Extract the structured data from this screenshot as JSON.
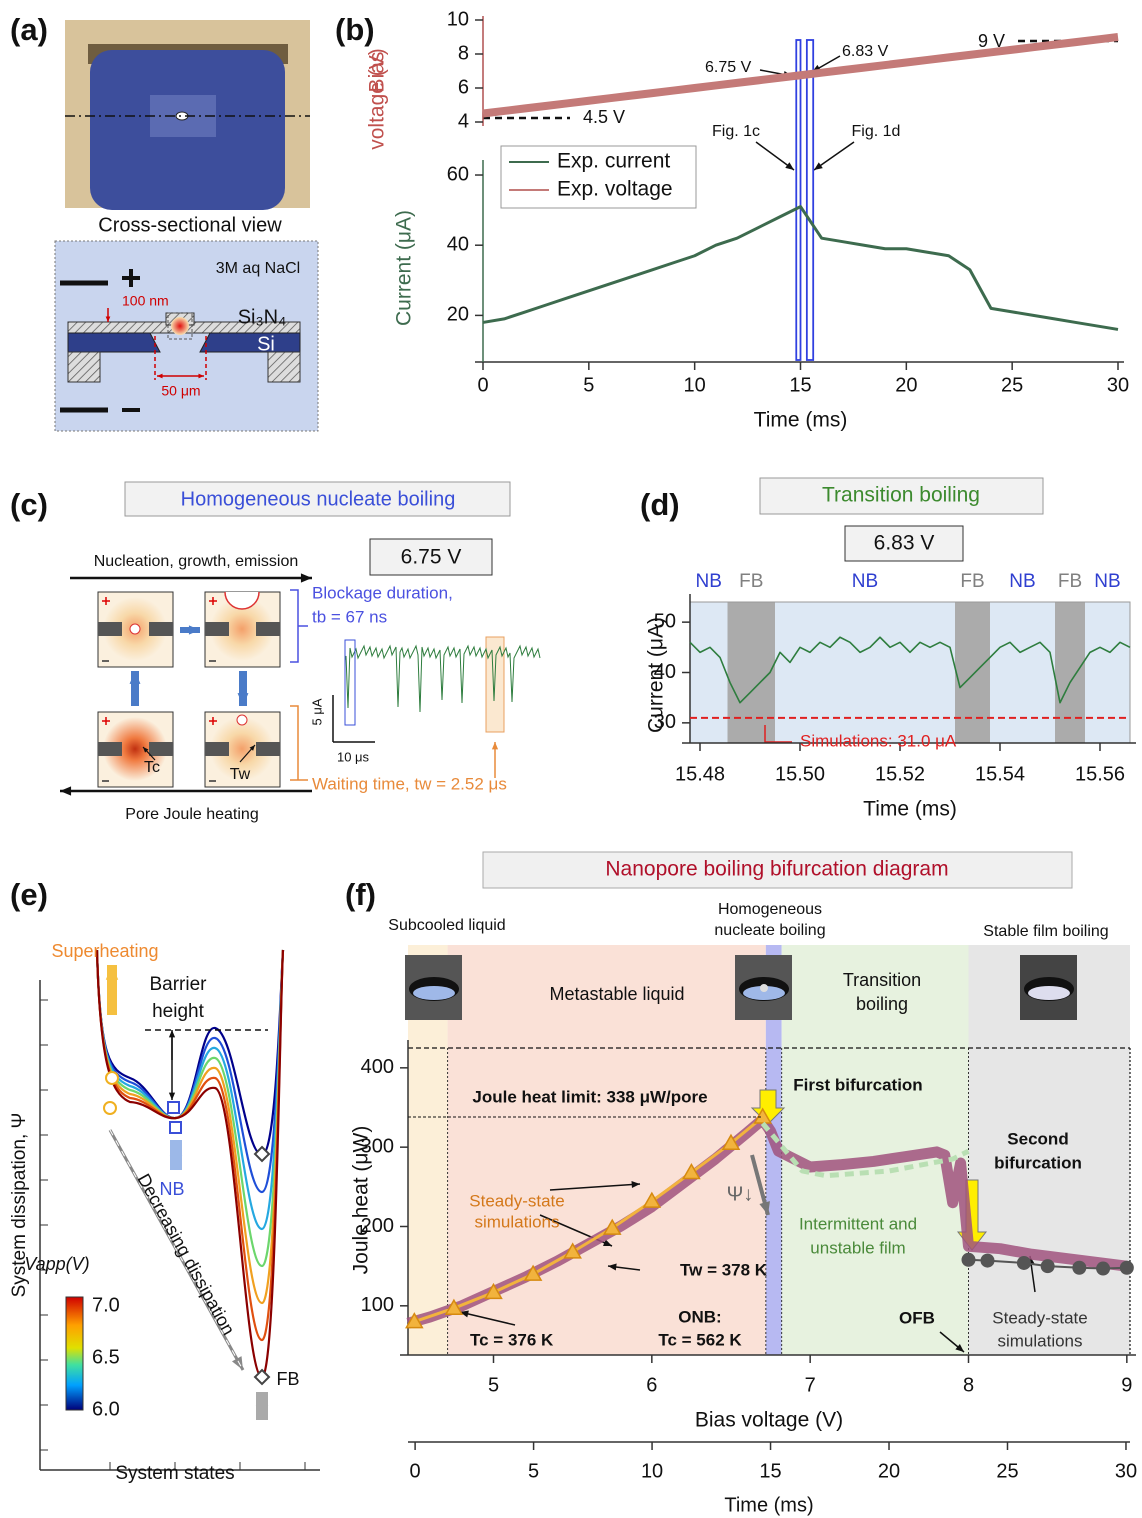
{
  "panels": {
    "a": {
      "label": "(a)",
      "cross_section": "Cross-sectional view",
      "electrolyte": "3M aq NaCl",
      "membrane": "Si₃N₄",
      "substrate": "Si",
      "thickness": "100 nm",
      "window": "50 μm"
    },
    "b": {
      "label": "(b)"
    },
    "c": {
      "label": "(c)",
      "title": "Homogeneous nucleate boiling",
      "voltage": "6.75 V",
      "top_arrow": "Nucleation, growth, emission",
      "bottom_arrow": "Pore Joule heating",
      "blockage": [
        "Blockage duration,",
        "tb = 67 ns"
      ],
      "waiting": "Waiting time, tw = 2.52 μs",
      "scale_y": "5 μA",
      "scale_x": "10 μs",
      "tc": "Tc",
      "tw": "Tw"
    },
    "d": {
      "label": "(d)"
    },
    "e": {
      "label": "(e)",
      "superheating": "Superheating",
      "barrier": [
        "Barrier",
        "height"
      ],
      "nb": "NB",
      "fb": "FB",
      "decreasing": "Decreasing dissipation",
      "y_label": "System dissipation, Ψ",
      "x_label": "System states",
      "colorbar_title": "Vapp(V)",
      "colorbar_ticks": [
        "7.0",
        "6.5",
        "6.0"
      ]
    },
    "f": {
      "label": "(f)"
    }
  },
  "chart_data": [
    {
      "type": "line",
      "x_label": "Time (ms)",
      "y_label": "Current (μA)",
      "y2_label": [
        "Bias",
        "voltage (V)"
      ],
      "x": [
        0,
        1,
        2,
        3,
        4,
        5,
        6,
        7,
        8,
        9,
        10,
        11,
        12,
        13,
        14,
        15,
        16,
        17,
        18,
        19,
        20,
        21,
        22,
        23,
        24,
        25,
        26,
        27,
        28,
        29,
        30
      ],
      "series": [
        {
          "name": "Exp. current",
          "color": "#3d6b4e",
          "values": [
            18,
            19,
            21,
            23,
            25,
            27,
            29,
            31,
            33,
            35,
            37,
            40,
            42,
            45,
            48,
            51,
            42,
            41,
            40,
            39,
            39,
            38,
            37,
            33,
            22,
            21,
            20,
            19,
            18,
            17,
            16
          ]
        },
        {
          "name": "Exp. voltage",
          "color": "#c47a78",
          "axis": "y2",
          "values": [
            4.5,
            4.65,
            4.8,
            4.95,
            5.1,
            5.25,
            5.4,
            5.55,
            5.7,
            5.85,
            6.0,
            6.15,
            6.3,
            6.45,
            6.6,
            6.75,
            6.9,
            7.05,
            7.2,
            7.35,
            7.5,
            7.65,
            7.8,
            7.95,
            8.1,
            8.25,
            8.4,
            8.55,
            8.7,
            8.85,
            9.0
          ]
        }
      ],
      "xlim": [
        0,
        30
      ],
      "xticks": [
        0,
        5,
        10,
        15,
        20,
        25,
        30
      ],
      "ylim": [
        9,
        62
      ],
      "yticks": [
        20,
        40,
        60
      ],
      "y2lim": [
        4,
        10
      ],
      "y2ticks": [
        4,
        6,
        8,
        10
      ],
      "legend": "upper left",
      "windows": [
        [
          14.8,
          15.0
        ],
        [
          15.3,
          15.6
        ]
      ],
      "annotations": {
        "start_voltage": "4.5 V",
        "end_voltage": "9 V",
        "v1": "6.75 V",
        "v2": "6.83 V",
        "fig_c": "Fig. 1c",
        "fig_d": "Fig. 1d"
      }
    },
    {
      "type": "line",
      "title": "Transition boiling",
      "subtitle": "6.83 V",
      "x_label": "Time (ms)",
      "y_label": "Current (μA)",
      "x": [
        15.478,
        15.48,
        15.482,
        15.484,
        15.486,
        15.488,
        15.49,
        15.492,
        15.494,
        15.496,
        15.498,
        15.5,
        15.502,
        15.504,
        15.506,
        15.508,
        15.51,
        15.512,
        15.514,
        15.516,
        15.518,
        15.52,
        15.522,
        15.524,
        15.526,
        15.528,
        15.53,
        15.532,
        15.534,
        15.536,
        15.538,
        15.54,
        15.542,
        15.544,
        15.546,
        15.548,
        15.55,
        15.552,
        15.554,
        15.556,
        15.558,
        15.56,
        15.562,
        15.564,
        15.566
      ],
      "series": [
        {
          "color": "#2e7d3e",
          "values": [
            46,
            44,
            45,
            43,
            38,
            34,
            36,
            38,
            40,
            44,
            42,
            45,
            44,
            46,
            45,
            47,
            46,
            44,
            45,
            47,
            45,
            46,
            44,
            46,
            45,
            46,
            45,
            37,
            39,
            41,
            43,
            45,
            46,
            44,
            45,
            46,
            44,
            34,
            38,
            41,
            44,
            45,
            44,
            46,
            45
          ]
        }
      ],
      "xlim": [
        15.478,
        15.566
      ],
      "xticks": [
        15.48,
        {
          "value": 15.5,
          "label": "15.50"
        },
        15.52,
        15.54,
        15.56
      ],
      "ylim": [
        26,
        54
      ],
      "yticks": [
        30,
        40,
        50
      ],
      "regions": [
        {
          "label": "NB",
          "start": 15.478,
          "end": 15.4855,
          "color": "#dde8f4",
          "label_color": "#2f3fd0"
        },
        {
          "label": "FB",
          "start": 15.4855,
          "end": 15.495,
          "color": "#ababab",
          "label_color": "#808080"
        },
        {
          "label": "NB",
          "start": 15.495,
          "end": 15.531,
          "color": "#dde8f4",
          "label_color": "#2f3fd0"
        },
        {
          "label": "FB",
          "start": 15.531,
          "end": 15.538,
          "color": "#ababab",
          "label_color": "#808080"
        },
        {
          "label": "NB",
          "start": 15.538,
          "end": 15.551,
          "color": "#dde8f4",
          "label_color": "#2f3fd0"
        },
        {
          "label": "FB",
          "start": 15.551,
          "end": 15.557,
          "color": "#ababab",
          "label_color": "#808080"
        },
        {
          "label": "NB",
          "start": 15.557,
          "end": 15.566,
          "color": "#dde8f4",
          "label_color": "#2f3fd0"
        }
      ],
      "simulation": {
        "value": 31.0,
        "label": "Simulations: 31.0 μA",
        "color": "#e02020"
      }
    },
    {
      "type": "line",
      "title": "Nanopore boiling bifurcation diagram",
      "x_label": "Bias voltage (V)",
      "y_label": "Joule heat (μW)",
      "x2_label": "Time (ms)",
      "xlim": [
        4.46,
        9.02
      ],
      "xticks": [
        5,
        6,
        7,
        8,
        9
      ],
      "ylim": [
        38,
        425
      ],
      "yticks": [
        100,
        200,
        300,
        400
      ],
      "x2lim": [
        -0.3,
        30.17
      ],
      "x2ticks": [
        0,
        5,
        10,
        15,
        20,
        25,
        30
      ],
      "series": [
        {
          "color": "#a0527e",
          "x": [
            4.46,
            4.6,
            4.8,
            5.0,
            5.2,
            5.4,
            5.6,
            5.8,
            6.0,
            6.2,
            6.4,
            6.6,
            6.7,
            6.75,
            6.8,
            7.0,
            7.2,
            7.4,
            7.6,
            7.8,
            7.85,
            7.9,
            7.95,
            8.0,
            8.2,
            8.4,
            8.6,
            8.8,
            9.0
          ],
          "values": [
            78,
            86,
            100,
            118,
            136,
            156,
            178,
            200,
            225,
            255,
            285,
            318,
            335,
            320,
            295,
            275,
            278,
            282,
            288,
            294,
            290,
            230,
            280,
            175,
            172,
            165,
            160,
            155,
            150
          ]
        },
        {
          "color": "#f2b33d",
          "marker": "triangle",
          "x": [
            4.5,
            4.75,
            5.0,
            5.25,
            5.5,
            5.75,
            6.0,
            6.25,
            6.5,
            6.7
          ],
          "values": [
            80,
            97,
            117,
            140,
            168,
            198,
            232,
            268,
            305,
            338
          ]
        },
        {
          "color": "#b9dfb3",
          "dash": true,
          "x": [
            6.7,
            6.95,
            7.1,
            7.5,
            7.9,
            8.0
          ],
          "values": [
            330,
            270,
            264,
            270,
            285,
            295
          ]
        },
        {
          "color": "#555555",
          "marker": "circle",
          "x": [
            8.0,
            8.12,
            8.35,
            8.5,
            8.7,
            8.85,
            9.0
          ],
          "values": [
            158,
            157,
            154,
            150,
            148,
            147,
            148
          ]
        }
      ],
      "regions": [
        {
          "label": "Subcooled liquid",
          "start": 4.46,
          "end": 4.71,
          "color": "#fcefd8"
        },
        {
          "label": "Metastable liquid",
          "start": 4.71,
          "end": 6.72,
          "color": "#fae1d7"
        },
        {
          "label": [
            "Homogeneous",
            "nucleate boiling"
          ],
          "start": 6.72,
          "end": 6.82,
          "color": "#b7b9f2"
        },
        {
          "label": [
            "Transition",
            "boiling"
          ],
          "start": 6.82,
          "end": 8.0,
          "color": "#e7f2df"
        },
        {
          "label": "Stable film boiling",
          "start": 8.0,
          "end": 9.02,
          "color": "#e6e6e6"
        }
      ],
      "joule_limit": {
        "value": 338,
        "label": "Joule heat limit: 338 μW/pore"
      },
      "annotations": {
        "first": "First bifurcation",
        "second": [
          "Second",
          "bifurcation"
        ],
        "sim_left": [
          "Steady-state",
          "simulations"
        ],
        "tw": "Tw =  378 K",
        "tc": "Tc =  376 K",
        "onb": [
          "ONB:",
          "Tc =  562 K"
        ],
        "ofb": "OFB",
        "sim_right": [
          "Steady-state",
          "simulations"
        ],
        "film": [
          "Intermittent and",
          "unstable film"
        ],
        "psi": "Ψ↓"
      }
    }
  ]
}
